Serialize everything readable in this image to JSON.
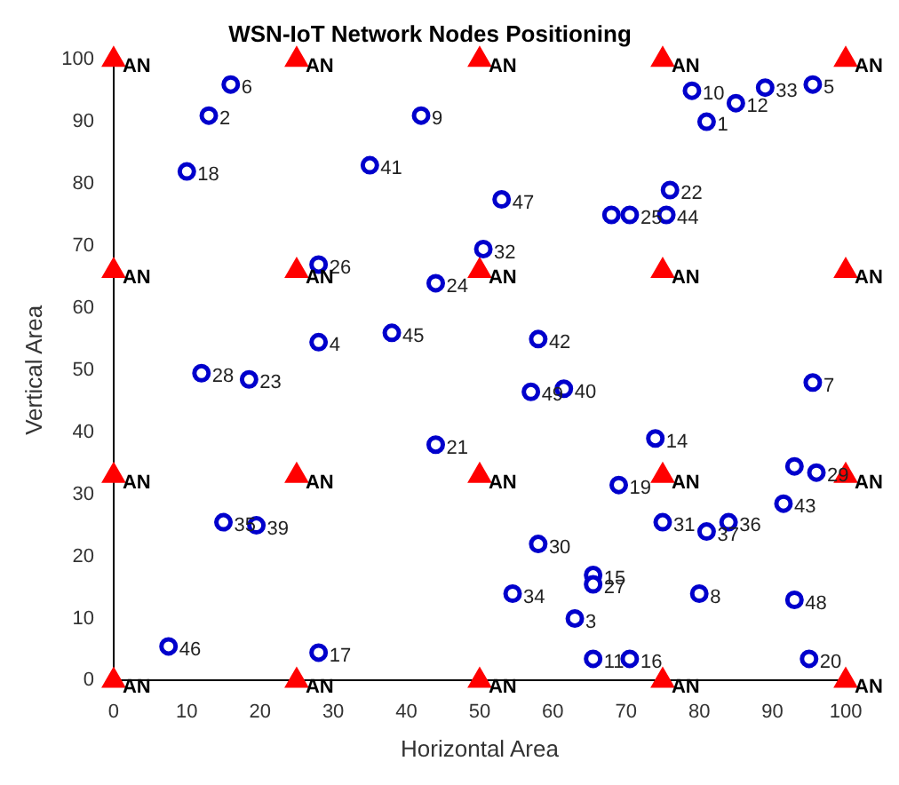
{
  "chart_data": {
    "type": "scatter",
    "title": "WSN-IoT Network Nodes Positioning",
    "xlabel": "Horizontal Area",
    "ylabel": "Vertical Area",
    "xlim": [
      0,
      100
    ],
    "ylim": [
      0,
      100
    ],
    "xticks": [
      0,
      10,
      20,
      30,
      40,
      50,
      60,
      70,
      80,
      90,
      100
    ],
    "yticks": [
      0,
      10,
      20,
      30,
      40,
      50,
      60,
      70,
      80,
      90,
      100
    ],
    "legend": false,
    "series": [
      {
        "color": "#0000cc",
        "marker": "circle",
        "x": [
          16,
          13,
          10,
          42,
          35,
          28,
          44,
          50.5,
          38,
          28,
          53,
          79,
          85,
          89,
          95.5,
          81,
          76,
          68,
          70.5,
          75.5,
          58,
          57,
          61.5,
          95.5,
          74,
          69,
          93,
          96,
          91.5,
          75,
          81,
          84,
          58,
          65.5,
          65.5,
          80,
          93,
          54.5,
          63,
          65.5,
          70.5,
          95,
          12,
          18.5,
          44,
          15,
          19.5,
          7.5,
          28
        ],
        "values": [
          96,
          91,
          82,
          91,
          83,
          67,
          64,
          69.5,
          56,
          54.5,
          77.5,
          95,
          93,
          95.5,
          96,
          90,
          79,
          75,
          75,
          75,
          55,
          46.5,
          47,
          48,
          39,
          31.5,
          34.5,
          33.5,
          28.5,
          25.5,
          24,
          25.5,
          22,
          17,
          15.5,
          14,
          13,
          14,
          10,
          3.5,
          3.5,
          3.5,
          49.5,
          48.5,
          38,
          25.5,
          25,
          5.5,
          4.5
        ]
      },
      {
        "color": "#ff0000",
        "marker": "triangle",
        "x": [
          0,
          25,
          50,
          75,
          100,
          0,
          25,
          50,
          75,
          100,
          0,
          25,
          50,
          75,
          100,
          0,
          25,
          50,
          75,
          100
        ],
        "values": [
          100,
          100,
          100,
          100,
          100,
          66,
          66,
          66,
          66,
          66,
          33,
          33,
          33,
          33,
          33,
          0,
          0,
          0,
          0,
          0
        ]
      }
    ],
    "annotations": [
      {
        "text": "6",
        "x": 16,
        "y": 96
      },
      {
        "text": "2",
        "x": 13,
        "y": 91
      },
      {
        "text": "18",
        "x": 10,
        "y": 82
      },
      {
        "text": "9",
        "x": 42,
        "y": 91
      },
      {
        "text": "41",
        "x": 35,
        "y": 83
      },
      {
        "text": "26",
        "x": 28,
        "y": 67
      },
      {
        "text": "24",
        "x": 44,
        "y": 64
      },
      {
        "text": "32",
        "x": 50.5,
        "y": 69.5
      },
      {
        "text": "45",
        "x": 38,
        "y": 56
      },
      {
        "text": "4",
        "x": 28,
        "y": 54.5
      },
      {
        "text": "47",
        "x": 53,
        "y": 77.5
      },
      {
        "text": "10",
        "x": 79,
        "y": 95
      },
      {
        "text": "12",
        "x": 85,
        "y": 93
      },
      {
        "text": "33",
        "x": 89,
        "y": 95.5
      },
      {
        "text": "5",
        "x": 95.5,
        "y": 96
      },
      {
        "text": "1",
        "x": 81,
        "y": 90
      },
      {
        "text": "22",
        "x": 76,
        "y": 79
      },
      {
        "text": "25",
        "x": 70.5,
        "y": 75
      },
      {
        "text": "44",
        "x": 75.5,
        "y": 75
      },
      {
        "text": "42",
        "x": 58,
        "y": 55
      },
      {
        "text": "49",
        "x": 57,
        "y": 46.5
      },
      {
        "text": "40",
        "x": 61.5,
        "y": 47
      },
      {
        "text": "7",
        "x": 95.5,
        "y": 48
      },
      {
        "text": "14",
        "x": 74,
        "y": 39
      },
      {
        "text": "19",
        "x": 69,
        "y": 31.5
      },
      {
        "text": "29",
        "x": 96,
        "y": 33.5
      },
      {
        "text": "43",
        "x": 91.5,
        "y": 28.5
      },
      {
        "text": "31",
        "x": 75,
        "y": 25.5
      },
      {
        "text": "37",
        "x": 81,
        "y": 24
      },
      {
        "text": "36",
        "x": 84,
        "y": 25.5
      },
      {
        "text": "30",
        "x": 58,
        "y": 22
      },
      {
        "text": "15",
        "x": 65.5,
        "y": 17
      },
      {
        "text": "27",
        "x": 65.5,
        "y": 15.5
      },
      {
        "text": "8",
        "x": 80,
        "y": 14
      },
      {
        "text": "48",
        "x": 93,
        "y": 13
      },
      {
        "text": "34",
        "x": 54.5,
        "y": 14
      },
      {
        "text": "3",
        "x": 63,
        "y": 10
      },
      {
        "text": "11",
        "x": 65.5,
        "y": 3.5
      },
      {
        "text": "16",
        "x": 70.5,
        "y": 3.5
      },
      {
        "text": "20",
        "x": 95,
        "y": 3.5
      },
      {
        "text": "28",
        "x": 12,
        "y": 49.5
      },
      {
        "text": "23",
        "x": 18.5,
        "y": 48.5
      },
      {
        "text": "21",
        "x": 44,
        "y": 38
      },
      {
        "text": "35",
        "x": 15,
        "y": 25.5
      },
      {
        "text": "39",
        "x": 19.5,
        "y": 25
      },
      {
        "text": "46",
        "x": 7.5,
        "y": 5.5
      },
      {
        "text": "17",
        "x": 28,
        "y": 4.5
      },
      {
        "text": "AN",
        "x": 0,
        "y": 100
      },
      {
        "text": "AN",
        "x": 25,
        "y": 100
      },
      {
        "text": "AN",
        "x": 50,
        "y": 100
      },
      {
        "text": "AN",
        "x": 75,
        "y": 100
      },
      {
        "text": "AN",
        "x": 100,
        "y": 100
      },
      {
        "text": "AN",
        "x": 0,
        "y": 66
      },
      {
        "text": "AN",
        "x": 25,
        "y": 66
      },
      {
        "text": "AN",
        "x": 50,
        "y": 66
      },
      {
        "text": "AN",
        "x": 75,
        "y": 66
      },
      {
        "text": "AN",
        "x": 100,
        "y": 66
      },
      {
        "text": "AN",
        "x": 0,
        "y": 33
      },
      {
        "text": "AN",
        "x": 25,
        "y": 33
      },
      {
        "text": "AN",
        "x": 50,
        "y": 33
      },
      {
        "text": "AN",
        "x": 75,
        "y": 33
      },
      {
        "text": "AN",
        "x": 100,
        "y": 33
      },
      {
        "text": "AN",
        "x": 0,
        "y": 0
      },
      {
        "text": "AN",
        "x": 25,
        "y": 0
      },
      {
        "text": "AN",
        "x": 50,
        "y": 0
      },
      {
        "text": "AN",
        "x": 75,
        "y": 0
      },
      {
        "text": "AN",
        "x": 100,
        "y": 0
      }
    ]
  }
}
